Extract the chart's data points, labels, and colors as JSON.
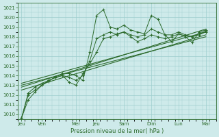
{
  "xlabel": "Pression niveau de la mer( hPa )",
  "bg_color": "#ceeaea",
  "grid_color": "#9ecece",
  "line_color": "#2d6b2d",
  "ylim": [
    1009.5,
    1021.5
  ],
  "yticks": [
    1010,
    1011,
    1012,
    1013,
    1014,
    1015,
    1016,
    1017,
    1018,
    1019,
    1020,
    1021
  ],
  "x_day_labels": [
    "Jeu",
    "Ven",
    "Mer",
    "Jeu",
    "Sam",
    "Dim",
    "Lun",
    "Mar"
  ],
  "x_day_positions": [
    0,
    12,
    32,
    44,
    60,
    76,
    92,
    108
  ],
  "xlim": [
    -2,
    114
  ],
  "line1_x": [
    0,
    4,
    8,
    12,
    16,
    20,
    24,
    28,
    32,
    36,
    40,
    44,
    48,
    52,
    56,
    60,
    64,
    68,
    72,
    76,
    80,
    84,
    88,
    92,
    96,
    100,
    104,
    108
  ],
  "line1_y": [
    1009.6,
    1011.5,
    1012.3,
    1013.0,
    1013.4,
    1013.9,
    1014.2,
    1014.2,
    1014.0,
    1013.5,
    1016.4,
    1020.2,
    1020.8,
    1019.0,
    1018.8,
    1019.2,
    1018.7,
    1018.5,
    1018.3,
    1020.2,
    1019.8,
    1018.2,
    1017.5,
    1018.3,
    1018.0,
    1017.4,
    1018.5,
    1018.7
  ],
  "line2_x": [
    0,
    4,
    8,
    12,
    16,
    20,
    24,
    28,
    32,
    36,
    40,
    44,
    48,
    52,
    56,
    60,
    64,
    68,
    72,
    76,
    80,
    84,
    88,
    92,
    96,
    100,
    104,
    108
  ],
  "line2_y": [
    1009.6,
    1012.0,
    1012.5,
    1013.0,
    1013.5,
    1013.8,
    1014.0,
    1013.8,
    1013.5,
    1014.0,
    1015.5,
    1017.8,
    1018.2,
    1018.5,
    1018.2,
    1018.5,
    1018.0,
    1017.5,
    1017.8,
    1018.2,
    1018.0,
    1017.8,
    1018.0,
    1018.3,
    1018.1,
    1018.0,
    1018.3,
    1018.6
  ],
  "line3_x": [
    0,
    4,
    8,
    12,
    16,
    20,
    24,
    28,
    32,
    36,
    40,
    44,
    48,
    52,
    56,
    60,
    64,
    68,
    72,
    76,
    80,
    84,
    88,
    92,
    96,
    100,
    104,
    108
  ],
  "line3_y": [
    1009.6,
    1012.2,
    1012.8,
    1013.2,
    1013.5,
    1013.8,
    1014.0,
    1013.3,
    1013.0,
    1014.2,
    1015.2,
    1016.4,
    1017.8,
    1018.0,
    1018.3,
    1018.5,
    1018.2,
    1018.0,
    1018.2,
    1018.8,
    1018.5,
    1018.2,
    1018.2,
    1018.5,
    1018.2,
    1018.0,
    1018.2,
    1018.5
  ],
  "trend_lines": [
    {
      "x": [
        0,
        108
      ],
      "y": [
        1012.5,
        1018.2
      ]
    },
    {
      "x": [
        0,
        108
      ],
      "y": [
        1013.0,
        1018.0
      ]
    },
    {
      "x": [
        0,
        108
      ],
      "y": [
        1013.2,
        1018.5
      ]
    },
    {
      "x": [
        0,
        108
      ],
      "y": [
        1012.8,
        1018.8
      ]
    }
  ]
}
